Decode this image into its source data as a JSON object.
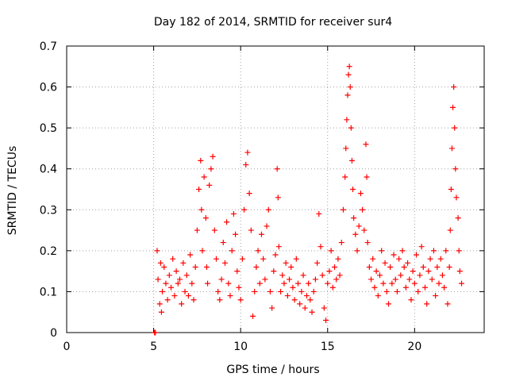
{
  "chart_data": {
    "type": "scatter",
    "title": "Day 182 of 2014, SRMTID for receiver sur4",
    "xlabel": "GPS time / hours",
    "ylabel": "SRMTID / TECUs",
    "xlim": [
      0,
      24
    ],
    "ylim": [
      0,
      0.7
    ],
    "xticks": [
      0,
      5,
      10,
      15,
      20
    ],
    "yticks": [
      0,
      0.1,
      0.2,
      0.3,
      0.4,
      0.5,
      0.6,
      0.7
    ],
    "grid": true,
    "marker": "+",
    "color": "#ff0000",
    "series": [
      {
        "name": "sur4",
        "points": [
          [
            5.05,
            0.0
          ],
          [
            5.1,
            0.0
          ],
          [
            5.2,
            0.2
          ],
          [
            5.25,
            0.13
          ],
          [
            5.35,
            0.07
          ],
          [
            5.4,
            0.17
          ],
          [
            5.45,
            0.05
          ],
          [
            5.5,
            0.1
          ],
          [
            5.6,
            0.16
          ],
          [
            5.7,
            0.12
          ],
          [
            5.8,
            0.08
          ],
          [
            5.9,
            0.14
          ],
          [
            6.0,
            0.11
          ],
          [
            6.1,
            0.18
          ],
          [
            6.2,
            0.09
          ],
          [
            6.3,
            0.15
          ],
          [
            6.4,
            0.12
          ],
          [
            6.5,
            0.13
          ],
          [
            6.6,
            0.07
          ],
          [
            6.7,
            0.17
          ],
          [
            6.8,
            0.1
          ],
          [
            6.9,
            0.14
          ],
          [
            7.0,
            0.09
          ],
          [
            7.1,
            0.19
          ],
          [
            7.2,
            0.12
          ],
          [
            7.3,
            0.08
          ],
          [
            7.4,
            0.16
          ],
          [
            7.5,
            0.25
          ],
          [
            7.6,
            0.35
          ],
          [
            7.7,
            0.42
          ],
          [
            7.75,
            0.3
          ],
          [
            7.8,
            0.2
          ],
          [
            7.9,
            0.38
          ],
          [
            8.0,
            0.28
          ],
          [
            8.05,
            0.16
          ],
          [
            8.1,
            0.12
          ],
          [
            8.2,
            0.36
          ],
          [
            8.3,
            0.4
          ],
          [
            8.4,
            0.43
          ],
          [
            8.5,
            0.25
          ],
          [
            8.6,
            0.18
          ],
          [
            8.7,
            0.1
          ],
          [
            8.8,
            0.08
          ],
          [
            8.9,
            0.13
          ],
          [
            9.0,
            0.22
          ],
          [
            9.1,
            0.17
          ],
          [
            9.2,
            0.27
          ],
          [
            9.3,
            0.12
          ],
          [
            9.4,
            0.09
          ],
          [
            9.5,
            0.2
          ],
          [
            9.6,
            0.29
          ],
          [
            9.7,
            0.24
          ],
          [
            9.8,
            0.15
          ],
          [
            9.9,
            0.11
          ],
          [
            10.0,
            0.08
          ],
          [
            10.1,
            0.18
          ],
          [
            10.2,
            0.3
          ],
          [
            10.3,
            0.41
          ],
          [
            10.4,
            0.44
          ],
          [
            10.5,
            0.34
          ],
          [
            10.6,
            0.25
          ],
          [
            10.7,
            0.04
          ],
          [
            10.8,
            0.1
          ],
          [
            10.9,
            0.16
          ],
          [
            11.0,
            0.2
          ],
          [
            11.1,
            0.12
          ],
          [
            11.2,
            0.24
          ],
          [
            11.3,
            0.18
          ],
          [
            11.4,
            0.13
          ],
          [
            11.5,
            0.26
          ],
          [
            11.6,
            0.3
          ],
          [
            11.7,
            0.1
          ],
          [
            11.8,
            0.06
          ],
          [
            11.9,
            0.15
          ],
          [
            12.0,
            0.19
          ],
          [
            12.1,
            0.4
          ],
          [
            12.15,
            0.33
          ],
          [
            12.2,
            0.21
          ],
          [
            12.3,
            0.1
          ],
          [
            12.4,
            0.14
          ],
          [
            12.5,
            0.12
          ],
          [
            12.6,
            0.17
          ],
          [
            12.7,
            0.09
          ],
          [
            12.8,
            0.13
          ],
          [
            12.9,
            0.16
          ],
          [
            13.0,
            0.11
          ],
          [
            13.1,
            0.08
          ],
          [
            13.2,
            0.18
          ],
          [
            13.3,
            0.12
          ],
          [
            13.4,
            0.07
          ],
          [
            13.5,
            0.1
          ],
          [
            13.6,
            0.14
          ],
          [
            13.7,
            0.06
          ],
          [
            13.8,
            0.09
          ],
          [
            13.9,
            0.12
          ],
          [
            14.0,
            0.08
          ],
          [
            14.1,
            0.05
          ],
          [
            14.2,
            0.1
          ],
          [
            14.3,
            0.13
          ],
          [
            14.4,
            0.17
          ],
          [
            14.5,
            0.29
          ],
          [
            14.6,
            0.21
          ],
          [
            14.7,
            0.14
          ],
          [
            14.8,
            0.06
          ],
          [
            14.9,
            0.03
          ],
          [
            15.0,
            0.12
          ],
          [
            15.1,
            0.15
          ],
          [
            15.2,
            0.2
          ],
          [
            15.3,
            0.11
          ],
          [
            15.4,
            0.16
          ],
          [
            15.5,
            0.13
          ],
          [
            15.6,
            0.18
          ],
          [
            15.7,
            0.14
          ],
          [
            15.8,
            0.22
          ],
          [
            15.9,
            0.3
          ],
          [
            16.0,
            0.38
          ],
          [
            16.05,
            0.45
          ],
          [
            16.1,
            0.52
          ],
          [
            16.15,
            0.58
          ],
          [
            16.2,
            0.63
          ],
          [
            16.25,
            0.65
          ],
          [
            16.3,
            0.6
          ],
          [
            16.35,
            0.5
          ],
          [
            16.4,
            0.42
          ],
          [
            16.45,
            0.35
          ],
          [
            16.5,
            0.28
          ],
          [
            16.6,
            0.24
          ],
          [
            16.7,
            0.2
          ],
          [
            16.8,
            0.26
          ],
          [
            16.9,
            0.34
          ],
          [
            17.0,
            0.3
          ],
          [
            17.1,
            0.25
          ],
          [
            17.2,
            0.46
          ],
          [
            17.25,
            0.38
          ],
          [
            17.3,
            0.22
          ],
          [
            17.4,
            0.16
          ],
          [
            17.5,
            0.13
          ],
          [
            17.6,
            0.18
          ],
          [
            17.7,
            0.11
          ],
          [
            17.8,
            0.15
          ],
          [
            17.9,
            0.09
          ],
          [
            18.0,
            0.14
          ],
          [
            18.1,
            0.2
          ],
          [
            18.2,
            0.12
          ],
          [
            18.3,
            0.17
          ],
          [
            18.4,
            0.1
          ],
          [
            18.5,
            0.07
          ],
          [
            18.6,
            0.16
          ],
          [
            18.7,
            0.12
          ],
          [
            18.8,
            0.19
          ],
          [
            18.9,
            0.13
          ],
          [
            19.0,
            0.1
          ],
          [
            19.1,
            0.18
          ],
          [
            19.2,
            0.14
          ],
          [
            19.3,
            0.2
          ],
          [
            19.4,
            0.16
          ],
          [
            19.5,
            0.11
          ],
          [
            19.6,
            0.17
          ],
          [
            19.7,
            0.13
          ],
          [
            19.8,
            0.08
          ],
          [
            19.9,
            0.15
          ],
          [
            20.0,
            0.12
          ],
          [
            20.1,
            0.19
          ],
          [
            20.2,
            0.1
          ],
          [
            20.3,
            0.14
          ],
          [
            20.4,
            0.21
          ],
          [
            20.5,
            0.16
          ],
          [
            20.6,
            0.11
          ],
          [
            20.7,
            0.07
          ],
          [
            20.8,
            0.15
          ],
          [
            20.9,
            0.18
          ],
          [
            21.0,
            0.13
          ],
          [
            21.1,
            0.2
          ],
          [
            21.2,
            0.09
          ],
          [
            21.3,
            0.16
          ],
          [
            21.4,
            0.12
          ],
          [
            21.5,
            0.18
          ],
          [
            21.6,
            0.14
          ],
          [
            21.7,
            0.11
          ],
          [
            21.8,
            0.2
          ],
          [
            21.9,
            0.07
          ],
          [
            22.0,
            0.16
          ],
          [
            22.05,
            0.25
          ],
          [
            22.1,
            0.35
          ],
          [
            22.15,
            0.45
          ],
          [
            22.2,
            0.55
          ],
          [
            22.25,
            0.6
          ],
          [
            22.3,
            0.5
          ],
          [
            22.35,
            0.4
          ],
          [
            22.4,
            0.33
          ],
          [
            22.5,
            0.28
          ],
          [
            22.55,
            0.2
          ],
          [
            22.6,
            0.15
          ],
          [
            22.7,
            0.12
          ]
        ]
      }
    ]
  }
}
